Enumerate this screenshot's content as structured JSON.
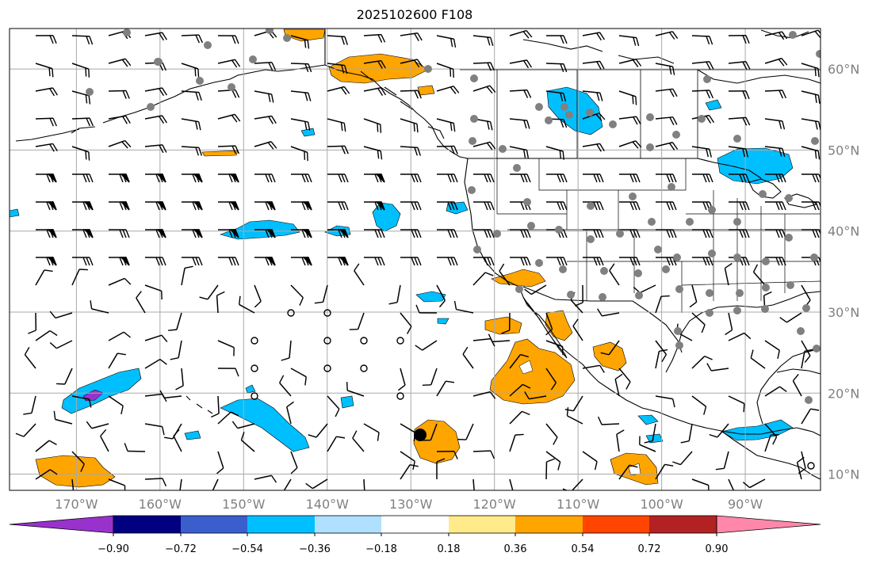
{
  "title": "2025102600 F108",
  "map": {
    "lon_range": [
      -178,
      -81
    ],
    "lat_range": [
      8,
      65
    ],
    "lat_ticks": [
      {
        "value": 60,
        "label": "60°N"
      },
      {
        "value": 50,
        "label": "50°N"
      },
      {
        "value": 40,
        "label": "40°N"
      },
      {
        "value": 30,
        "label": "30°N"
      },
      {
        "value": 20,
        "label": "20°N"
      },
      {
        "value": 10,
        "label": "10°N"
      }
    ],
    "lon_ticks": [
      {
        "value": -170,
        "label": "170°W"
      },
      {
        "value": -160,
        "label": "160°W"
      },
      {
        "value": -150,
        "label": "150°W"
      },
      {
        "value": -140,
        "label": "140°W"
      },
      {
        "value": -130,
        "label": "130°W"
      },
      {
        "value": -120,
        "label": "120°W"
      },
      {
        "value": -110,
        "label": "110°W"
      },
      {
        "value": -100,
        "label": "100°W"
      },
      {
        "value": -90,
        "label": "90°W"
      }
    ],
    "colors": {
      "positive_low": "#ffa500",
      "positive_faint": "#ffeb8a",
      "negative_low": "#00bfff",
      "negative_faint": "#b0e0ff",
      "negative_mid": "#3a5fcd",
      "negative_strong": "#9932cc"
    }
  },
  "colorbar": {
    "colors": [
      "#9932cc",
      "#000080",
      "#3a5fcd",
      "#00bfff",
      "#b0e0ff",
      "#ffffff",
      "#ffeb8a",
      "#ffa500",
      "#ff4500",
      "#b22222",
      "#ff88aa"
    ],
    "tick_labels": [
      "−0.90",
      "−0.72",
      "−0.54",
      "−0.36",
      "−0.18",
      "0.18",
      "0.36",
      "0.54",
      "0.72",
      "0.90"
    ]
  }
}
